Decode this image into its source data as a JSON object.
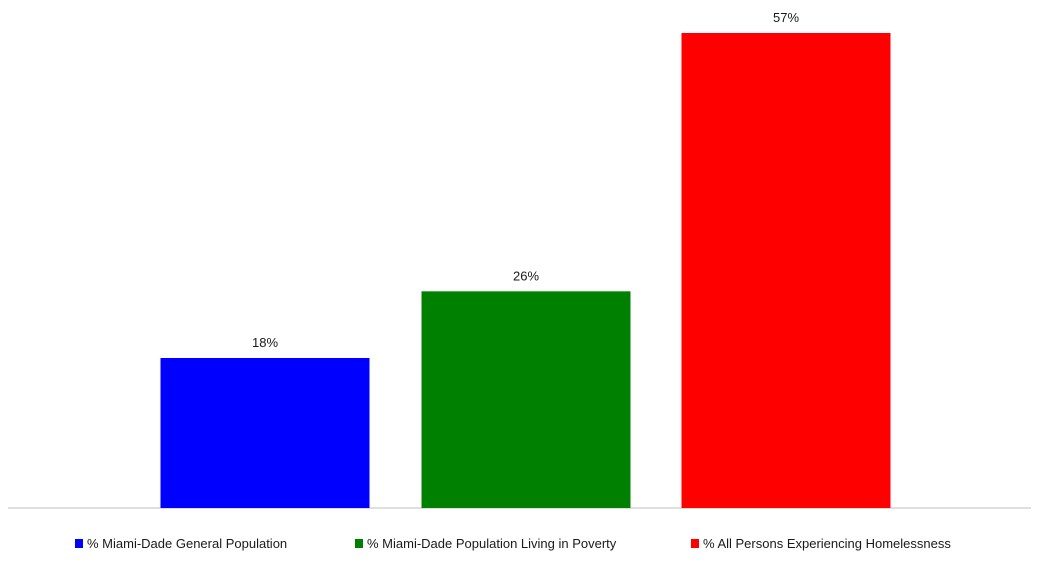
{
  "chart_data": {
    "type": "bar",
    "categories": [
      "% Miami-Dade General Population",
      "% Miami-Dade Population Living in Poverty",
      "% All Persons Experiencing Homelessness"
    ],
    "values": [
      18,
      26,
      57
    ],
    "data_labels": [
      "18%",
      "26%",
      "57%"
    ],
    "colors": [
      "#0000ff",
      "#008000",
      "#ff0000"
    ],
    "ylim": [
      0,
      60
    ],
    "grid": false,
    "legend_position": "bottom"
  }
}
